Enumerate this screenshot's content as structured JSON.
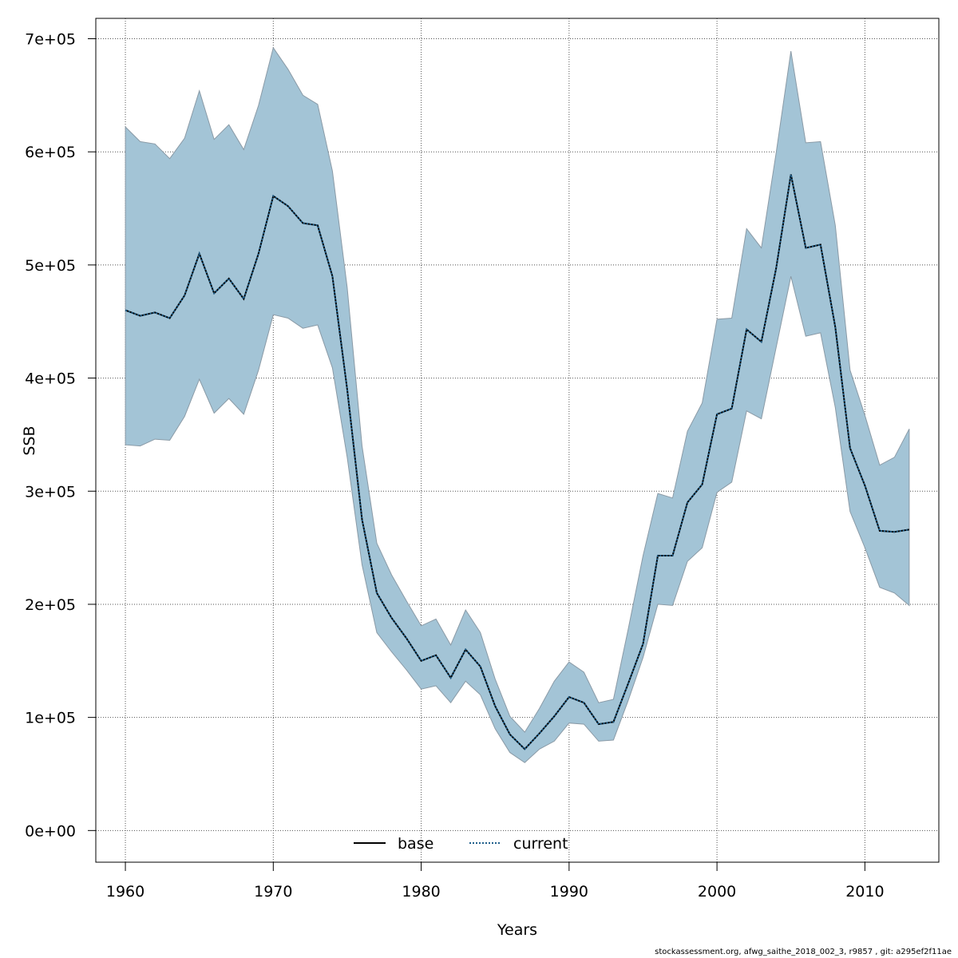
{
  "chart_data": {
    "type": "line",
    "title": "",
    "xlabel": "Years",
    "ylabel": "SSB",
    "xlim": [
      1958,
      2015
    ],
    "ylim": [
      -28000,
      718000
    ],
    "x_ticks": [
      1960,
      1970,
      1980,
      1990,
      2000,
      2010
    ],
    "y_ticks": [
      0,
      100000,
      200000,
      300000,
      400000,
      500000,
      600000,
      700000
    ],
    "y_tick_labels": [
      "0e+00",
      "1e+05",
      "2e+05",
      "3e+05",
      "4e+05",
      "5e+05",
      "6e+05",
      "7e+05"
    ],
    "grid": true,
    "legend_position": "bottom",
    "band_color": "#a3c4d6",
    "x": [
      1960,
      1961,
      1962,
      1963,
      1964,
      1965,
      1966,
      1967,
      1968,
      1969,
      1970,
      1971,
      1972,
      1973,
      1974,
      1975,
      1976,
      1977,
      1978,
      1979,
      1980,
      1981,
      1982,
      1983,
      1984,
      1985,
      1986,
      1987,
      1988,
      1989,
      1990,
      1991,
      1992,
      1993,
      1994,
      1995,
      1996,
      1997,
      1998,
      1999,
      2000,
      2001,
      2002,
      2003,
      2004,
      2005,
      2006,
      2007,
      2008,
      2009,
      2010,
      2011,
      2012,
      2013
    ],
    "series": [
      {
        "name": "base",
        "color": "#000000",
        "dash": "solid",
        "values": [
          460000,
          455000,
          458000,
          453000,
          473000,
          510000,
          475000,
          488000,
          470000,
          510000,
          561000,
          552000,
          537000,
          535000,
          490000,
          390000,
          275000,
          210000,
          188000,
          170000,
          150000,
          155000,
          135000,
          160000,
          145000,
          110000,
          85000,
          72000,
          86000,
          101000,
          118000,
          113000,
          94000,
          96000,
          130000,
          165000,
          243000,
          243000,
          290000,
          306000,
          368000,
          373000,
          443000,
          432000,
          497000,
          580000,
          515000,
          518000,
          445000,
          338000,
          305000,
          265000,
          264000,
          266000
        ]
      },
      {
        "name": "current",
        "color": "#1f5f8b",
        "dash": "dotted",
        "values": [
          460000,
          455000,
          458000,
          453000,
          473000,
          510000,
          475000,
          488000,
          470000,
          510000,
          561000,
          552000,
          537000,
          535000,
          490000,
          390000,
          275000,
          210000,
          188000,
          170000,
          150000,
          155000,
          135000,
          160000,
          145000,
          110000,
          85000,
          72000,
          86000,
          101000,
          118000,
          113000,
          94000,
          96000,
          130000,
          165000,
          243000,
          243000,
          290000,
          306000,
          368000,
          373000,
          443000,
          432000,
          497000,
          580000,
          515000,
          518000,
          445000,
          338000,
          305000,
          265000,
          264000,
          266000
        ]
      }
    ],
    "band_upper": [
      622000,
      609000,
      607000,
      594000,
      612000,
      654000,
      611000,
      624000,
      602000,
      641000,
      692000,
      673000,
      650000,
      642000,
      583000,
      480000,
      340000,
      254000,
      226000,
      203000,
      181000,
      187000,
      164000,
      195000,
      175000,
      134000,
      101000,
      87000,
      108000,
      132000,
      149000,
      140000,
      113000,
      116000,
      178000,
      243000,
      298000,
      294000,
      353000,
      378000,
      452000,
      453000,
      532000,
      515000,
      599000,
      689000,
      608000,
      609000,
      535000,
      407000,
      367000,
      323000,
      330000,
      355000
    ],
    "band_lower": [
      341000,
      340000,
      346000,
      345000,
      366000,
      399000,
      369000,
      382000,
      368000,
      407000,
      456000,
      453000,
      444000,
      447000,
      409000,
      330000,
      235000,
      175000,
      158000,
      142000,
      125000,
      128000,
      113000,
      132000,
      120000,
      90000,
      69000,
      60000,
      72000,
      79000,
      95000,
      94000,
      79000,
      80000,
      115000,
      153000,
      200000,
      199000,
      238000,
      250000,
      299000,
      308000,
      371000,
      364000,
      427000,
      490000,
      437000,
      440000,
      374000,
      282000,
      250000,
      215000,
      210000,
      199000
    ]
  },
  "footer": {
    "text": "stockassessment.org, afwg_saithe_2018_002_3, r9857 , git: a295ef2f11ae"
  }
}
